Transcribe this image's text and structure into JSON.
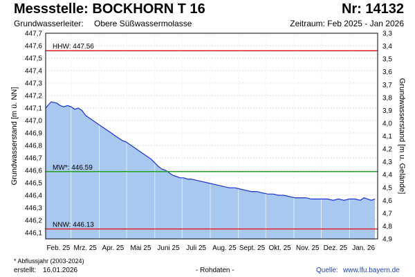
{
  "header": {
    "title": "Messstelle: BOCKHORN T 16",
    "number": "Nr: 14132",
    "aquifer_label": "Grundwasserleiter:",
    "aquifer_value": "Obere Süßwassermolasse",
    "period": "Zeitraum: Feb 2025 - Jan 2026"
  },
  "footer": {
    "footnote": "* Abflussjahr (2003-2024)",
    "created_label": "erstellt:",
    "created_date": "16.01.2026",
    "data_status": "- Rohdaten -",
    "source_label": "Quelle:",
    "source_url": "www.lfu.bayern.de"
  },
  "chart_data": {
    "type": "area",
    "ylabel": "Grundwasserstand [m ü. NN]",
    "y2label": "Grundwasserstand [m u. Gelände]",
    "ylim": [
      446.05,
      447.7
    ],
    "y2lim": [
      3.3,
      4.9
    ],
    "yticks": [
      "446,1",
      "446,2",
      "446,3",
      "446,4",
      "446,5",
      "446,6",
      "446,7",
      "446,8",
      "446,9",
      "447,0",
      "447,1",
      "447,2",
      "447,3",
      "447,4",
      "447,5",
      "447,6",
      "447,7"
    ],
    "y2ticks": [
      "3,3",
      "3,4",
      "3,5",
      "3,6",
      "3,7",
      "3,8",
      "3,9",
      "4,0",
      "4,1",
      "4,2",
      "4,3",
      "4,4",
      "4,5",
      "4,6",
      "4,7",
      "4,8",
      "4,9"
    ],
    "xticks": [
      "Feb. 25",
      "Mrz. 25",
      "Apr. 25",
      "Mai 25",
      "Juni 25",
      "Juli 25",
      "Aug. 25",
      "Sept. 25",
      "Okt. 25",
      "Nov. 25",
      "Dez. 25",
      "Jan. 26"
    ],
    "x_range_days": [
      0,
      365
    ],
    "grid": true,
    "fill_color": "#a8c8f0",
    "line_color": "#1a2ed8",
    "reference_lines": [
      {
        "label": "HHW: 447.56",
        "value": 447.56,
        "color": "#e02020"
      },
      {
        "label": "MW*: 446.59",
        "value": 446.59,
        "color": "#20a020"
      },
      {
        "label": "NNW: 446.13",
        "value": 446.13,
        "color": "#e02020"
      }
    ],
    "series": [
      {
        "x": [
          0,
          6,
          12,
          16,
          20,
          24,
          28,
          32,
          36,
          40,
          44,
          48,
          52,
          56,
          60,
          64,
          68,
          72,
          76,
          80,
          84,
          88,
          92,
          96,
          100,
          104,
          108,
          112,
          116,
          120,
          124,
          128,
          132,
          136,
          140,
          144,
          148,
          152,
          156,
          160,
          166,
          172,
          178,
          184,
          190,
          196,
          202,
          208,
          214,
          220,
          226,
          232,
          238,
          244,
          250,
          256,
          262,
          268,
          274,
          280,
          286,
          292,
          298,
          304,
          310,
          316,
          322,
          328,
          334,
          340,
          346,
          350,
          354,
          358,
          362
        ],
        "values": [
          447.1,
          447.15,
          447.14,
          447.12,
          447.11,
          447.12,
          447.11,
          447.09,
          447.1,
          447.08,
          447.04,
          447.02,
          447.0,
          446.98,
          446.96,
          446.94,
          446.92,
          446.9,
          446.88,
          446.86,
          446.84,
          446.83,
          446.81,
          446.79,
          446.77,
          446.75,
          446.73,
          446.71,
          446.69,
          446.66,
          446.63,
          446.61,
          446.6,
          446.58,
          446.56,
          446.55,
          446.54,
          446.54,
          446.53,
          446.53,
          446.52,
          446.51,
          446.5,
          446.49,
          446.48,
          446.47,
          446.46,
          446.46,
          446.45,
          446.44,
          446.43,
          446.43,
          446.42,
          446.41,
          446.41,
          446.4,
          446.4,
          446.39,
          446.38,
          446.38,
          446.38,
          446.37,
          446.37,
          446.37,
          446.37,
          446.36,
          446.37,
          446.36,
          446.37,
          446.37,
          446.36,
          446.38,
          446.37,
          446.36,
          446.37
        ]
      }
    ]
  }
}
